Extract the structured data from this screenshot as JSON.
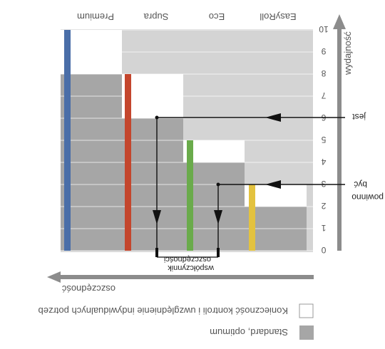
{
  "legend": {
    "standard_label": "Standard, optimum",
    "custom_label": "Konieczność kontroli i uwzględnienie indywidualnych potrzeb"
  },
  "axes": {
    "x_arrow_label": "oszczędność",
    "y_arrow_label": "wydajność",
    "y_ticks": [
      "0",
      "1",
      "2",
      "3",
      "4",
      "5",
      "6",
      "7",
      "8",
      "9",
      "10"
    ]
  },
  "annotations": {
    "coefficient_line1": "współczynnik",
    "coefficient_line2": "oszczędności",
    "should_be_line1": "powinno",
    "should_be_line2": "być",
    "is_label": "jest"
  },
  "categories": [
    "EasyRoll",
    "Eco",
    "Supra",
    "Premium"
  ],
  "colors": {
    "standard": "#a6a6a6",
    "background_band": "#d4d4d4",
    "custom": "#ffffff",
    "arrow": "#8c8c8c",
    "yellow_bar": "#e3c23f",
    "green_bar": "#6aab4b",
    "red_bar": "#c4462d",
    "blue_bar": "#4a6ea8"
  },
  "chart_data": {
    "type": "diagram",
    "categories": [
      "EasyRoll",
      "Eco",
      "Supra",
      "Premium"
    ],
    "y_range": [
      0,
      10
    ],
    "standard_range": [
      [
        0,
        2
      ],
      [
        0,
        4
      ],
      [
        0,
        6
      ],
      [
        0,
        8
      ]
    ],
    "custom_range": [
      [
        2,
        3
      ],
      [
        4,
        5
      ],
      [
        6,
        8
      ],
      [
        8,
        10
      ]
    ],
    "markers": [
      {
        "name": "powinno być",
        "value": 3
      },
      {
        "name": "jest",
        "value": 6
      }
    ]
  }
}
